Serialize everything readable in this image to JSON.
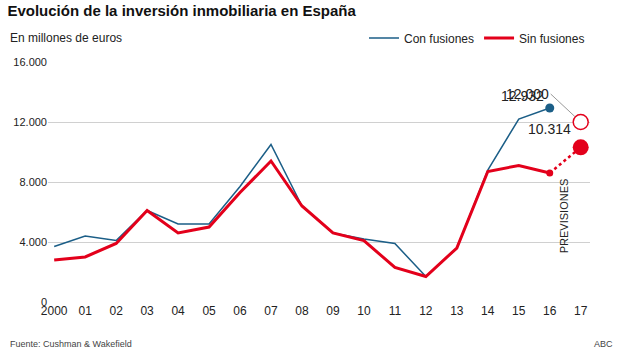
{
  "chart_data": {
    "type": "line",
    "title": "Evolución de la inversión inmobiliaria en España",
    "subtitle": "En millones de euros",
    "source": "Fuente: Cushman & Wakefield",
    "credit": "ABC",
    "annotations": [
      {
        "text": "PREVISIONES"
      }
    ],
    "categories": [
      "2000",
      "01",
      "02",
      "03",
      "04",
      "05",
      "06",
      "07",
      "08",
      "09",
      "10",
      "11",
      "12",
      "13",
      "14",
      "15",
      "16",
      "17"
    ],
    "series": [
      {
        "name": "Con fusiones",
        "color": "#1b5e87",
        "line_style": "solid",
        "values": [
          3700,
          4400,
          4100,
          6100,
          5200,
          5200,
          7700,
          10500,
          6400,
          4600,
          4200,
          3900,
          1700,
          3600,
          8800,
          12200,
          12932,
          null
        ],
        "value_labels": [
          null,
          null,
          null,
          null,
          null,
          null,
          null,
          null,
          null,
          null,
          null,
          null,
          null,
          null,
          null,
          null,
          "12.932",
          null
        ],
        "forecast": {
          "value": 12000,
          "label": "12.000",
          "color": "#e3001b",
          "marker": "open",
          "line_style": "none"
        }
      },
      {
        "name": "Sin fusiones",
        "color": "#e3001b",
        "line_style": "solid",
        "values": [
          2800,
          3000,
          3900,
          6100,
          4600,
          5000,
          7300,
          9400,
          6400,
          4600,
          4100,
          2300,
          1700,
          3600,
          8700,
          9100,
          8600,
          null
        ],
        "forecast": {
          "value": 10314,
          "label": "10.314",
          "color": "#e3001b",
          "marker": "filled",
          "line_style": "dotted"
        }
      }
    ],
    "ylim": [
      0,
      16000
    ],
    "yticks": [
      0,
      {
        "value": 4000,
        "label": "4.000"
      },
      {
        "value": 8000,
        "label": "8.000"
      },
      {
        "value": 12000,
        "label": "12.000"
      },
      {
        "value": 16000,
        "label": "16.000"
      }
    ],
    "grid": true,
    "legend": "top right"
  }
}
